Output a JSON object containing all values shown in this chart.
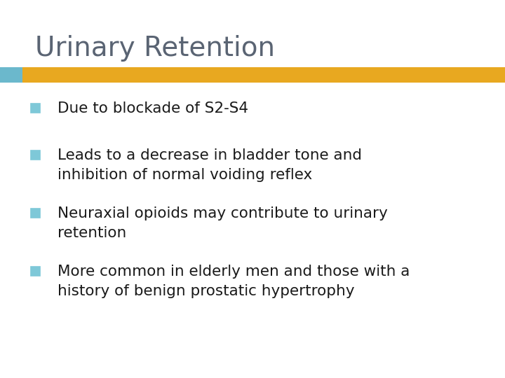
{
  "title": "Urinary Retention",
  "title_color": "#5a6473",
  "title_fontsize": 28,
  "background_color": "#ffffff",
  "bar_color_left": "#6bb8cc",
  "bar_color_right": "#e8a820",
  "bullet_color": "#7ec8d8",
  "text_color": "#1a1a1a",
  "text_fontsize": 15.5,
  "bullets": [
    {
      "line1": "Due to blockade of S2-S4",
      "line2": null
    },
    {
      "line1": "Leads to a decrease in bladder tone and",
      "line2": "inhibition of normal voiding reflex"
    },
    {
      "line1": "Neuraxial opioids may contribute to urinary",
      "line2": "retention"
    },
    {
      "line1": "More common in elderly men and those with a",
      "line2": "history of benign prostatic hypertrophy"
    }
  ]
}
